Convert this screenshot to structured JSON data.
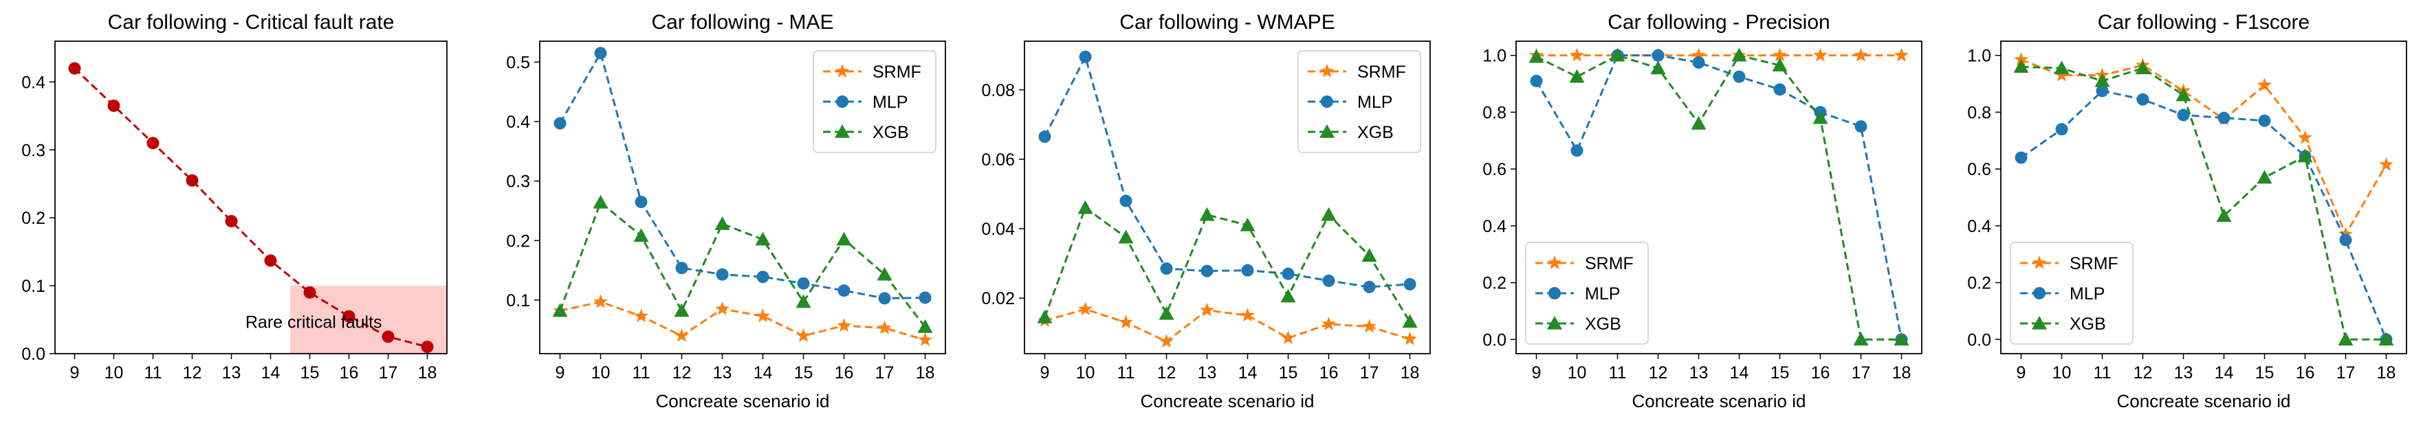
{
  "chart_data": [
    {
      "type": "line",
      "title": "Car following - Critical fault rate",
      "xlabel": "",
      "ylabel": "",
      "x": [
        9,
        10,
        11,
        12,
        13,
        14,
        15,
        16,
        17,
        18
      ],
      "xlim": [
        8.5,
        18.5
      ],
      "ylim": [
        0,
        0.46
      ],
      "yticks": [
        0.0,
        0.1,
        0.2,
        0.3,
        0.4
      ],
      "ytick_labels": [
        "0.0",
        "0.1",
        "0.2",
        "0.3",
        "0.4"
      ],
      "legend": null,
      "series": [
        {
          "name": "",
          "color": "#c00000",
          "marker": "circle",
          "values": [
            0.42,
            0.365,
            0.31,
            0.255,
            0.195,
            0.137,
            0.09,
            0.055,
            0.025,
            0.01
          ]
        }
      ],
      "annotation": {
        "text": "Rare critical faults",
        "x_from": 14.5,
        "x_to": 18.5,
        "y_from": 0,
        "y_to": 0.1,
        "fill": "#ffcccc"
      }
    },
    {
      "type": "line",
      "title": "Car following - MAE",
      "xlabel": "Concreate scenario id",
      "ylabel": "",
      "x": [
        9,
        10,
        11,
        12,
        13,
        14,
        15,
        16,
        17,
        18
      ],
      "xlim": [
        8.5,
        18.5
      ],
      "ylim": [
        0.01,
        0.535
      ],
      "yticks": [
        0.1,
        0.2,
        0.3,
        0.4,
        0.5
      ],
      "ytick_labels": [
        "0.1",
        "0.2",
        "0.3",
        "0.4",
        "0.5"
      ],
      "legend": "top-right",
      "series": [
        {
          "name": "SRMF",
          "color": "#ff7f0e",
          "marker": "star",
          "values": [
            0.082,
            0.097,
            0.073,
            0.04,
            0.085,
            0.073,
            0.04,
            0.057,
            0.053,
            0.033
          ]
        },
        {
          "name": "MLP",
          "color": "#1f77b4",
          "marker": "circle",
          "values": [
            0.397,
            0.515,
            0.265,
            0.154,
            0.143,
            0.139,
            0.128,
            0.116,
            0.103,
            0.104
          ]
        },
        {
          "name": "XGB",
          "color": "#228b22",
          "marker": "triangle",
          "values": [
            0.082,
            0.264,
            0.208,
            0.082,
            0.228,
            0.202,
            0.097,
            0.202,
            0.143,
            0.055
          ]
        }
      ]
    },
    {
      "type": "line",
      "title": "Car following - WMAPE",
      "xlabel": "Concreate scenario id",
      "ylabel": "",
      "x": [
        9,
        10,
        11,
        12,
        13,
        14,
        15,
        16,
        17,
        18
      ],
      "xlim": [
        8.5,
        18.5
      ],
      "ylim": [
        0.004,
        0.094
      ],
      "yticks": [
        0.02,
        0.04,
        0.06,
        0.08
      ],
      "ytick_labels": [
        "0.02",
        "0.04",
        "0.06",
        "0.08"
      ],
      "legend": "top-right",
      "series": [
        {
          "name": "SRMF",
          "color": "#ff7f0e",
          "marker": "star",
          "values": [
            0.0135,
            0.0168,
            0.013,
            0.0075,
            0.0165,
            0.015,
            0.0085,
            0.0125,
            0.0118,
            0.0082
          ]
        },
        {
          "name": "MLP",
          "color": "#1f77b4",
          "marker": "circle",
          "values": [
            0.0665,
            0.0895,
            0.048,
            0.0285,
            0.0278,
            0.028,
            0.027,
            0.025,
            0.0232,
            0.024
          ]
        },
        {
          "name": "XGB",
          "color": "#228b22",
          "marker": "triangle",
          "values": [
            0.0145,
            0.046,
            0.0375,
            0.0155,
            0.044,
            0.041,
            0.0205,
            0.044,
            0.0322,
            0.0132
          ]
        }
      ]
    },
    {
      "type": "line",
      "title": "Car following - Precision",
      "xlabel": "Concreate scenario id",
      "ylabel": "",
      "x": [
        9,
        10,
        11,
        12,
        13,
        14,
        15,
        16,
        17,
        18
      ],
      "xlim": [
        8.5,
        18.5
      ],
      "ylim": [
        -0.05,
        1.05
      ],
      "yticks": [
        0.0,
        0.2,
        0.4,
        0.6,
        0.8,
        1.0
      ],
      "ytick_labels": [
        "0.0",
        "0.2",
        "0.4",
        "0.6",
        "0.8",
        "1.0"
      ],
      "legend": "bottom-left",
      "series": [
        {
          "name": "SRMF",
          "color": "#ff7f0e",
          "marker": "star",
          "values": [
            1.0,
            1.0,
            1.0,
            1.0,
            1.0,
            1.0,
            1.0,
            1.0,
            1.0,
            1.0
          ]
        },
        {
          "name": "MLP",
          "color": "#1f77b4",
          "marker": "circle",
          "values": [
            0.91,
            0.665,
            1.0,
            1.0,
            0.975,
            0.925,
            0.88,
            0.8,
            0.75,
            0.0
          ]
        },
        {
          "name": "XGB",
          "color": "#228b22",
          "marker": "triangle",
          "values": [
            0.995,
            0.925,
            1.0,
            0.955,
            0.76,
            1.0,
            0.965,
            0.78,
            0.0,
            0.0
          ]
        }
      ]
    },
    {
      "type": "line",
      "title": "Car following - F1score",
      "xlabel": "Concreate scenario id",
      "ylabel": "",
      "x": [
        9,
        10,
        11,
        12,
        13,
        14,
        15,
        16,
        17,
        18
      ],
      "xlim": [
        8.5,
        18.5
      ],
      "ylim": [
        -0.05,
        1.05
      ],
      "yticks": [
        0.0,
        0.2,
        0.4,
        0.6,
        0.8,
        1.0
      ],
      "ytick_labels": [
        "0.0",
        "0.2",
        "0.4",
        "0.6",
        "0.8",
        "1.0"
      ],
      "legend": "bottom-left",
      "series": [
        {
          "name": "SRMF",
          "color": "#ff7f0e",
          "marker": "star",
          "values": [
            0.985,
            0.93,
            0.93,
            0.965,
            0.875,
            0.775,
            0.895,
            0.71,
            0.37,
            0.615
          ]
        },
        {
          "name": "MLP",
          "color": "#1f77b4",
          "marker": "circle",
          "values": [
            0.64,
            0.74,
            0.875,
            0.845,
            0.79,
            0.78,
            0.77,
            0.645,
            0.35,
            0.0
          ]
        },
        {
          "name": "XGB",
          "color": "#228b22",
          "marker": "triangle",
          "values": [
            0.96,
            0.955,
            0.91,
            0.955,
            0.86,
            0.435,
            0.57,
            0.645,
            0.0,
            0.0
          ]
        }
      ]
    }
  ]
}
